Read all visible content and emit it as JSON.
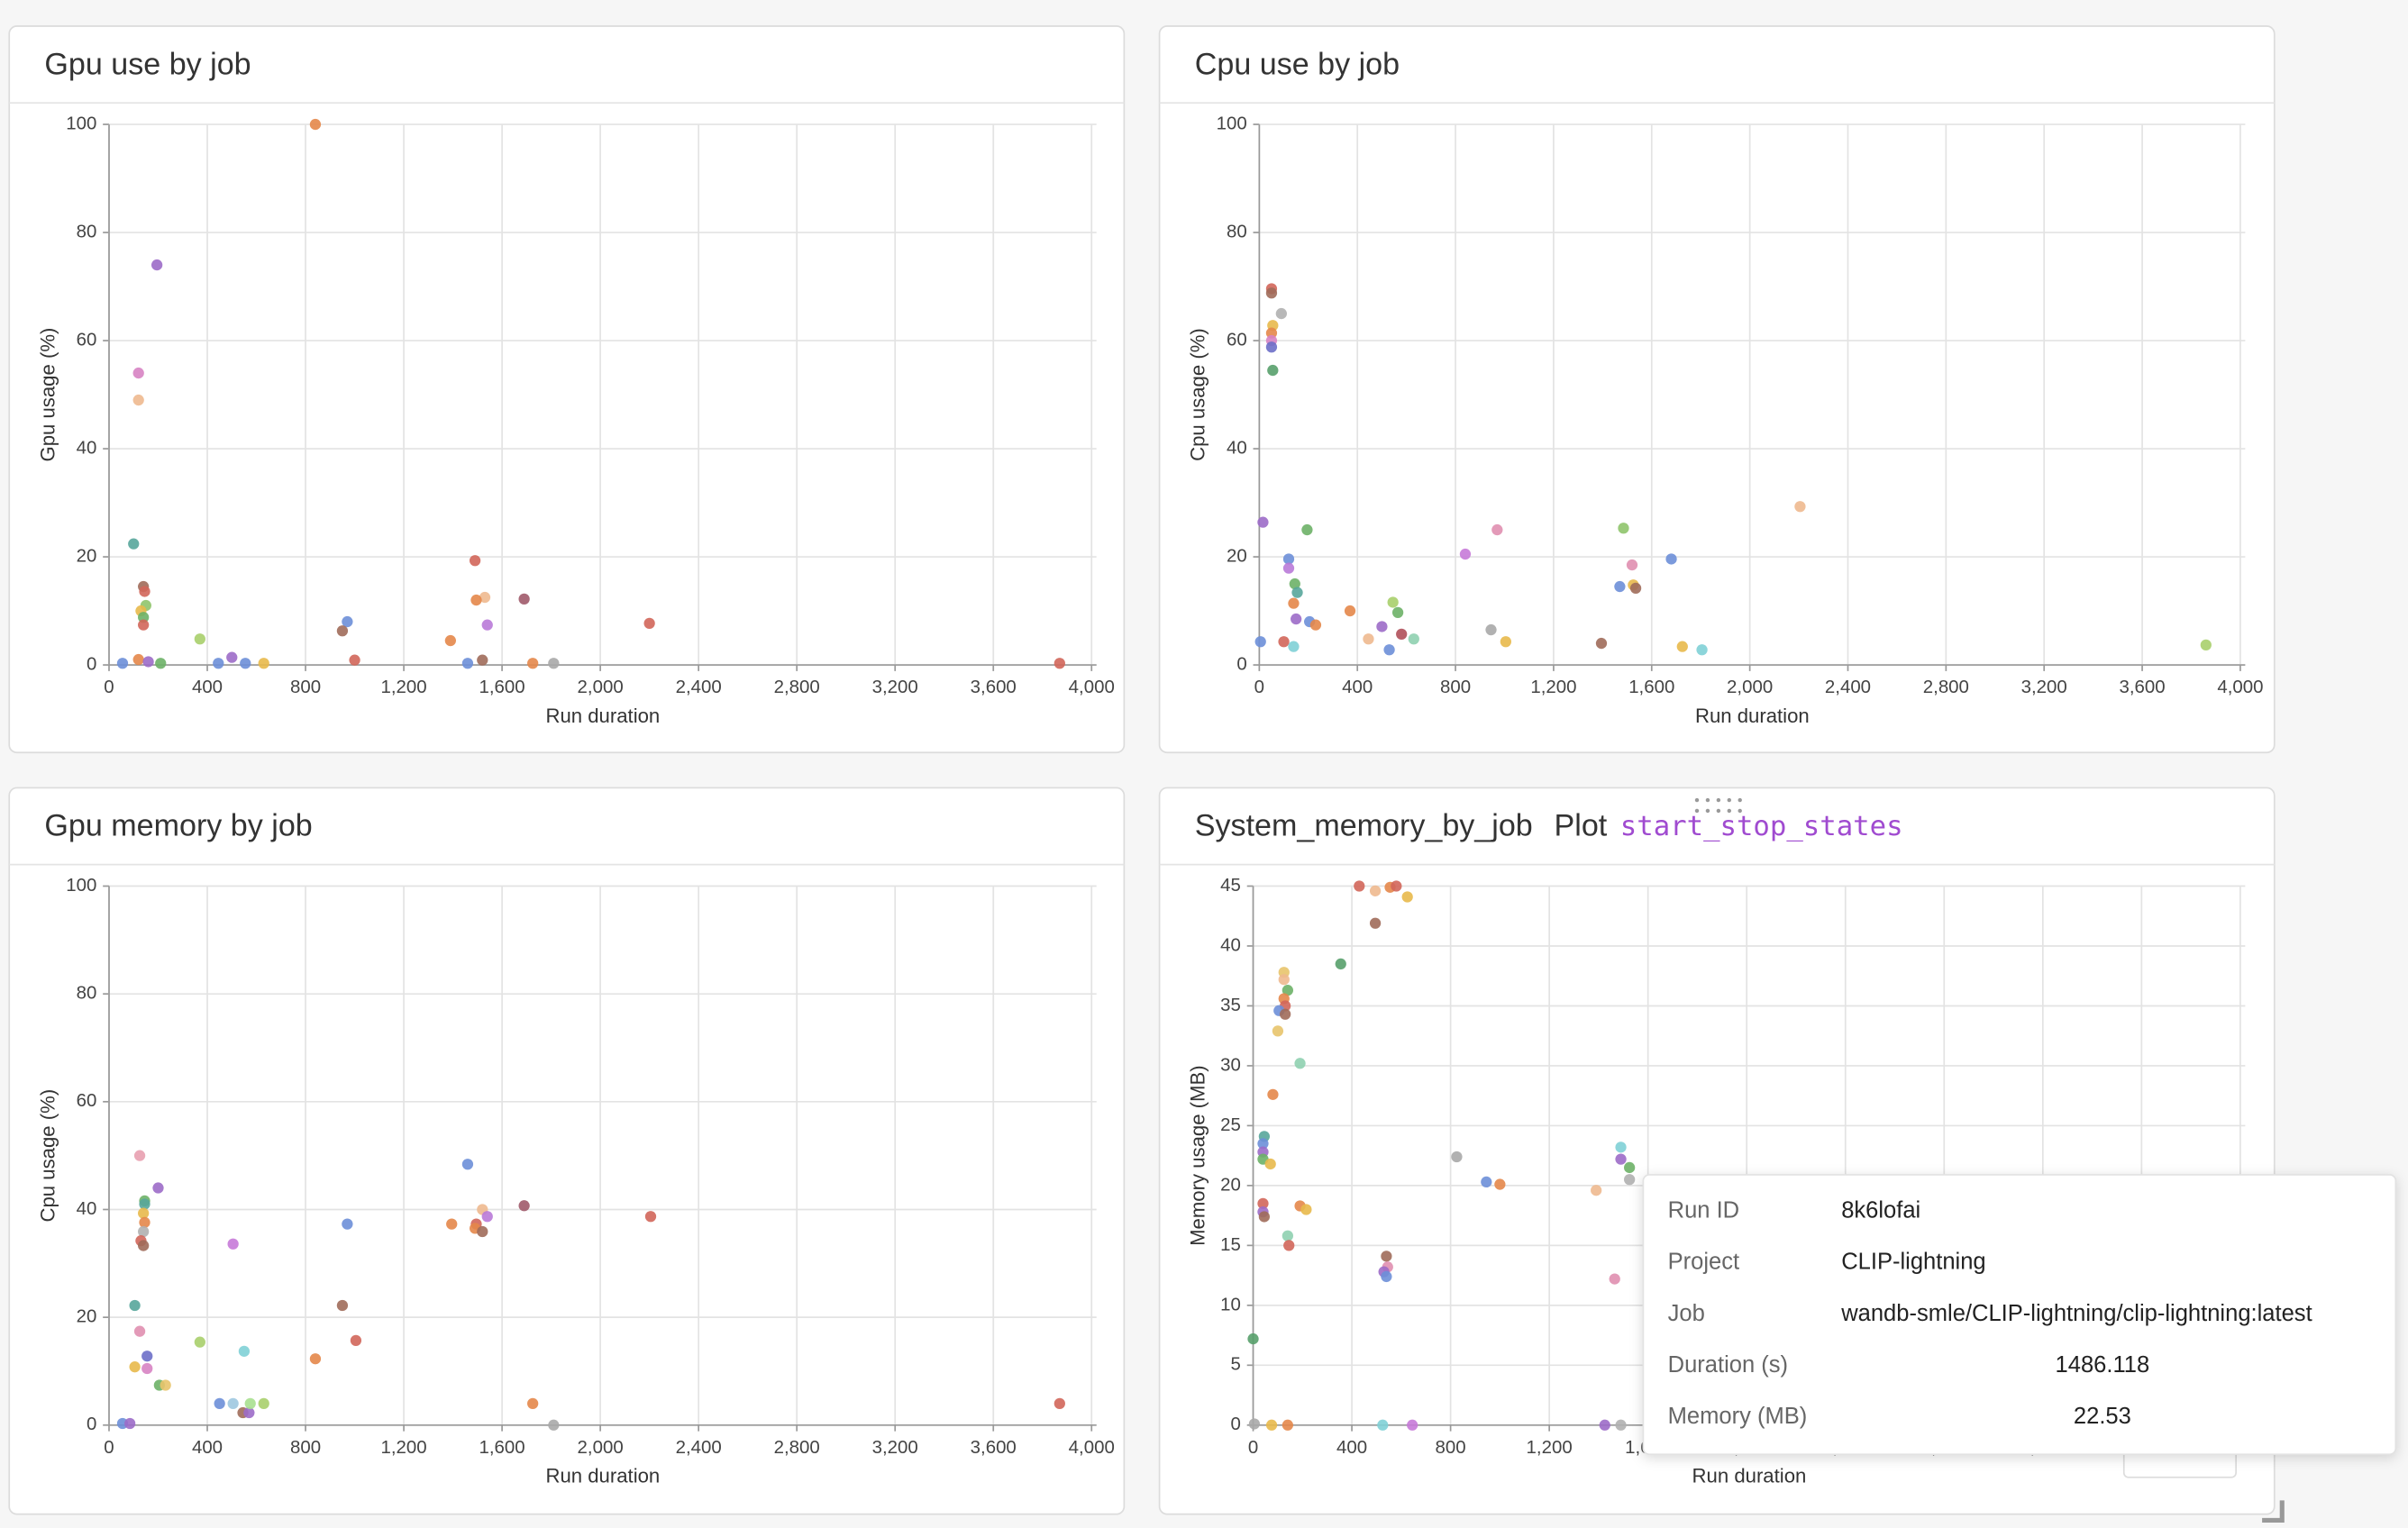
{
  "chart_data": [
    {
      "type": "scatter",
      "title": "Gpu use by job",
      "xlabel": "Run duration",
      "ylabel": "Gpu usage (%)",
      "grid": true,
      "xlim": [
        0,
        4020
      ],
      "ylim": [
        0,
        100
      ],
      "xticks": [
        0,
        400,
        800,
        {
          "value": 1200,
          "label": "1,200"
        },
        {
          "value": 1600,
          "label": "1,600"
        },
        {
          "value": 2000,
          "label": "2,000"
        },
        {
          "value": 2400,
          "label": "2,400"
        },
        {
          "value": 2800,
          "label": "2,800"
        },
        {
          "value": 3200,
          "label": "3,200"
        },
        {
          "value": 3600,
          "label": "3,600"
        },
        {
          "value": 4000,
          "label": "4,000"
        }
      ],
      "yticks": [
        0,
        20,
        40,
        60,
        80,
        100
      ],
      "x": [
        840,
        195,
        120,
        120,
        100,
        140,
        145,
        150,
        130,
        140,
        140,
        370,
        970,
        950,
        1490,
        1530,
        1495,
        1690,
        1540,
        1390,
        2200,
        55,
        120,
        160,
        210,
        500,
        555,
        630,
        1000,
        1520,
        1725,
        1810,
        1460,
        3870,
        445
      ],
      "values": [
        100,
        74,
        54,
        49,
        22.4,
        14.5,
        13.6,
        11,
        10,
        8.8,
        7.4,
        4.8,
        8,
        6.3,
        19.3,
        12.5,
        12,
        12.2,
        7.4,
        4.5,
        7.7,
        0.3,
        1,
        0.6,
        0.3,
        1.4,
        0.3,
        0.3,
        0.9,
        0.9,
        0.3,
        0.3,
        0.3,
        0.3,
        0.3
      ],
      "colors": [
        "#e4874a",
        "#9c6bc8",
        "#d783c3",
        "#eeb98f",
        "#58a69b",
        "#a06c5a",
        "#d1665a",
        "#8fc46b",
        "#e8b94b",
        "#6db167",
        "#d1665a",
        "#a9cf6b",
        "#6d8fd8",
        "#a06c5a",
        "#d1665a",
        "#eeb98f",
        "#e4874a",
        "#a05a6a",
        "#b97ad8",
        "#e4874a",
        "#d1665a",
        "#6d8fd8",
        "#e4874a",
        "#9c6bc8",
        "#6db167",
        "#9c6bc8",
        "#6d8fd8",
        "#e8b94b",
        "#d1665a",
        "#a06c5a",
        "#e4874a",
        "#a9a9a9",
        "#6d8fd8",
        "#d1665a",
        "#6d8fd8"
      ]
    },
    {
      "type": "scatter",
      "title": "Cpu use by job",
      "xlabel": "Run duration",
      "ylabel": "Cpu usage (%)",
      "grid": true,
      "xlim": [
        0,
        4020
      ],
      "ylim": [
        0,
        100
      ],
      "xticks": [
        0,
        400,
        800,
        {
          "value": 1200,
          "label": "1,200"
        },
        {
          "value": 1600,
          "label": "1,600"
        },
        {
          "value": 2000,
          "label": "2,000"
        },
        {
          "value": 2400,
          "label": "2,400"
        },
        {
          "value": 2800,
          "label": "2,800"
        },
        {
          "value": 3200,
          "label": "3,200"
        },
        {
          "value": 3600,
          "label": "3,600"
        },
        {
          "value": 4000,
          "label": "4,000"
        }
      ],
      "yticks": [
        0,
        20,
        40,
        60,
        80,
        100
      ],
      "x": [
        50,
        50,
        55,
        50,
        50,
        50,
        55,
        90,
        15,
        195,
        970,
        1485,
        2205,
        840,
        1680,
        120,
        120,
        145,
        155,
        1520,
        1470,
        1525,
        1535,
        545,
        565,
        370,
        140,
        150,
        205,
        230,
        500,
        580,
        630,
        445,
        945,
        1005,
        1395,
        1725,
        1805,
        3860,
        100,
        5,
        530,
        140
      ],
      "values": [
        69.6,
        68.8,
        62.8,
        61.4,
        60,
        58.8,
        54.5,
        65,
        26.4,
        25,
        25,
        25.3,
        29.3,
        20.5,
        19.6,
        19.6,
        17.9,
        15,
        13.4,
        18.5,
        14.5,
        14.8,
        14.2,
        11.6,
        9.7,
        10,
        11.4,
        8.5,
        8,
        7.4,
        7.1,
        5.7,
        4.8,
        4.8,
        6.5,
        4.3,
        4,
        3.4,
        2.8,
        3.7,
        4.3,
        4.3,
        2.8,
        3.4
      ],
      "colors": [
        "#d1665a",
        "#a06c5a",
        "#e8b94b",
        "#e4874a",
        "#d783c3",
        "#6d6fc8",
        "#58a06b",
        "#b0b0b0",
        "#9c6bc8",
        "#6db167",
        "#e08fb0",
        "#8fc46b",
        "#eeb98f",
        "#c67ad8",
        "#6d8fd8",
        "#6d8fd8",
        "#b97ad8",
        "#6db167",
        "#58a69b",
        "#e08fb0",
        "#6d8fd8",
        "#e8b94b",
        "#a06c5a",
        "#a9cf6b",
        "#6db167",
        "#e4874a",
        "#e4874a",
        "#9c6bc8",
        "#6d8fd8",
        "#e4874a",
        "#9c6bc8",
        "#b0505a",
        "#8fd0b0",
        "#eeb98f",
        "#a9a9a9",
        "#e8b94b",
        "#a06c5a",
        "#e8b94b",
        "#7fd0d6",
        "#a9cf6b",
        "#d1665a",
        "#6d8fd8",
        "#6d8fd8",
        "#7fd0d6"
      ]
    },
    {
      "type": "scatter",
      "title": "Gpu memory by job",
      "xlabel": "Run duration",
      "ylabel": "Cpu usage (%)",
      "grid": true,
      "xlim": [
        0,
        4020
      ],
      "ylim": [
        0,
        100
      ],
      "xticks": [
        0,
        400,
        800,
        {
          "value": 1200,
          "label": "1,200"
        },
        {
          "value": 1600,
          "label": "1,600"
        },
        {
          "value": 2000,
          "label": "2,000"
        },
        {
          "value": 2400,
          "label": "2,400"
        },
        {
          "value": 2800,
          "label": "2,800"
        },
        {
          "value": 3200,
          "label": "3,200"
        },
        {
          "value": 3600,
          "label": "3,600"
        },
        {
          "value": 4000,
          "label": "4,000"
        }
      ],
      "yticks": [
        0,
        20,
        40,
        60,
        80,
        100
      ],
      "x": [
        125,
        200,
        145,
        145,
        140,
        145,
        140,
        130,
        140,
        105,
        125,
        105,
        155,
        155,
        505,
        370,
        550,
        205,
        230,
        450,
        505,
        545,
        570,
        575,
        630,
        840,
        1005,
        950,
        970,
        1460,
        1395,
        1520,
        1540,
        1495,
        1490,
        1520,
        1690,
        2205,
        1725,
        1810,
        3870,
        55,
        85
      ],
      "values": [
        50,
        44,
        41.6,
        41,
        39.3,
        37.6,
        35.9,
        34.2,
        33.3,
        22.2,
        17.4,
        10.8,
        12.8,
        10.5,
        33.6,
        15.4,
        13.7,
        7.4,
        7.4,
        4,
        4,
        2.3,
        2.3,
        4,
        4,
        12.3,
        15.7,
        22.2,
        37.3,
        48.4,
        37.3,
        40,
        38.7,
        37.3,
        36.5,
        35.9,
        40.7,
        38.7,
        4,
        0,
        4,
        0.3,
        0.3
      ],
      "colors": [
        "#e8a0b0",
        "#9c6bc8",
        "#6db167",
        "#58a69b",
        "#e8b94b",
        "#e4874a",
        "#b0b0b0",
        "#d1665a",
        "#a06c5a",
        "#58a69b",
        "#e08fb0",
        "#e8b94b",
        "#6d6fc8",
        "#d783c3",
        "#c67ad8",
        "#a9cf6b",
        "#7fd0d6",
        "#6db167",
        "#e8c46b",
        "#6d8fd8",
        "#9fc8e0",
        "#a06c5a",
        "#9c6bc8",
        "#a9e08f",
        "#a9cf6b",
        "#e4874a",
        "#d1665a",
        "#a06c5a",
        "#6d8fd8",
        "#6d8fd8",
        "#e4874a",
        "#eeb98f",
        "#b97ad8",
        "#d1665a",
        "#e4874a",
        "#a06c5a",
        "#a05a6a",
        "#d1665a",
        "#e4874a",
        "#a9a9a9",
        "#d1665a",
        "#6d8fd8",
        "#9c6bc8"
      ]
    },
    {
      "type": "scatter",
      "title": "System_memory_by_job",
      "xlabel": "Run duration",
      "ylabel": "Memory usage (MB)",
      "grid": true,
      "xlim": [
        0,
        4020
      ],
      "ylim": [
        0,
        45
      ],
      "xticks": [
        0,
        400,
        800,
        {
          "value": 1200,
          "label": "1,200"
        },
        {
          "value": 1600,
          "label": "1,600"
        },
        {
          "value": 2000,
          "label": "2,000"
        },
        {
          "value": 2400,
          "label": "2,400"
        },
        {
          "value": 2800,
          "label": "2,800"
        },
        {
          "value": 3200,
          "label": "3,200"
        },
        {
          "value": 3600,
          "label": "3,600"
        },
        {
          "value": 4000,
          "label": "4,000"
        }
      ],
      "yticks": [
        0,
        5,
        10,
        15,
        20,
        25,
        30,
        35,
        40,
        45
      ],
      "x": [
        430,
        495,
        555,
        580,
        625,
        495,
        355,
        125,
        125,
        140,
        125,
        130,
        105,
        130,
        100,
        190,
        80,
        45,
        40,
        40,
        40,
        70,
        40,
        40,
        45,
        190,
        215,
        140,
        145,
        825,
        945,
        1000,
        540,
        545,
        530,
        540,
        1390,
        1465,
        1490,
        1490,
        1525,
        1525,
        0,
        5,
        75,
        140,
        525,
        645,
        1425,
        1490
      ],
      "values": [
        45,
        44.6,
        44.9,
        45,
        44.1,
        41.9,
        38.5,
        37.8,
        37.2,
        36.3,
        35.6,
        35,
        34.6,
        34.3,
        32.9,
        30.2,
        27.6,
        24.1,
        23.5,
        22.8,
        22.2,
        21.8,
        18.5,
        17.8,
        17.4,
        18.3,
        18,
        15.8,
        15,
        22.4,
        20.3,
        20.1,
        14.1,
        13.2,
        12.8,
        12.4,
        19.6,
        12.2,
        23.2,
        22.2,
        21.5,
        20.5,
        7.2,
        0.1,
        0,
        0,
        0,
        0,
        0,
        0
      ],
      "colors": [
        "#d1665a",
        "#eeb98f",
        "#e4874a",
        "#d1665a",
        "#e8b94b",
        "#a06c5a",
        "#58a06b",
        "#e8c46b",
        "#eeb98f",
        "#6db167",
        "#e4874a",
        "#d1665a",
        "#6d8fd8",
        "#a06c5a",
        "#e8c46b",
        "#8fd0b0",
        "#e4874a",
        "#58a69b",
        "#6d8fd8",
        "#9c6bc8",
        "#6db167",
        "#e8b94b",
        "#d1665a",
        "#9c6bc8",
        "#a06c5a",
        "#e4874a",
        "#e8b94b",
        "#8fd0b0",
        "#d1665a",
        "#a9a9a9",
        "#6d8fd8",
        "#e4874a",
        "#a06c5a",
        "#e08fb0",
        "#9c6bc8",
        "#6d8fd8",
        "#eeb98f",
        "#e08fb0",
        "#7fd0d6",
        "#9c6bc8",
        "#6db167",
        "#b0b0b0",
        "#58a06b",
        "#a9a9a9",
        "#e8b94b",
        "#e4874a",
        "#7fd0d6",
        "#c67ad8",
        "#9c6bc8",
        "#b0b0b0"
      ]
    }
  ],
  "panel_header": {
    "label": "Plot",
    "code": "start_stop_states"
  },
  "tooltip": {
    "rows": [
      {
        "label": "Run ID",
        "value": "8k6lofai"
      },
      {
        "label": "Project",
        "value": "CLIP-lightning"
      },
      {
        "label": "Job",
        "value": "wandb-smle/CLIP-lightning/clip-lightning:latest"
      },
      {
        "label": "Duration (s)",
        "value": 1486.118
      },
      {
        "label": "Memory (MB)",
        "value": 22.53
      }
    ]
  }
}
